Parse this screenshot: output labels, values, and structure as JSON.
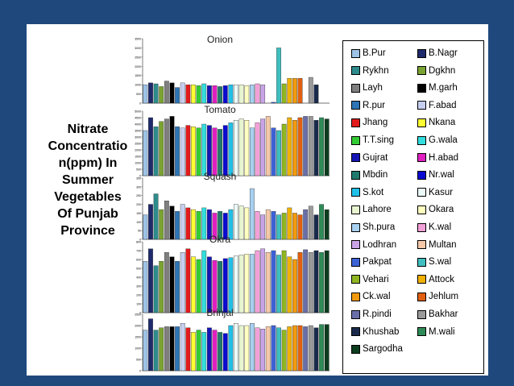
{
  "side_title": "Nitrate\nConcentratio\nn(ppm) In\nSummer\nVegetables\nOf Punjab\nProvince",
  "legend": [
    {
      "name": "B.Pur",
      "color": "#9dc3e6"
    },
    {
      "name": "B.Nagr",
      "color": "#1f2a6b"
    },
    {
      "name": "Rykhn",
      "color": "#2e8b8b"
    },
    {
      "name": "Dgkhn",
      "color": "#7aa332"
    },
    {
      "name": "Layh",
      "color": "#7f7f7f"
    },
    {
      "name": "M.garh",
      "color": "#000000"
    },
    {
      "name": "R.pur",
      "color": "#2e75b6"
    },
    {
      "name": "F.abad",
      "color": "#c6cff0"
    },
    {
      "name": "Jhang",
      "color": "#e31a1c"
    },
    {
      "name": "Nkana",
      "color": "#ffff33"
    },
    {
      "name": "T.T.sing",
      "color": "#33cc33"
    },
    {
      "name": "G.wala",
      "color": "#33dddd"
    },
    {
      "name": "Gujrat",
      "color": "#1515b5"
    },
    {
      "name": "H.abad",
      "color": "#e020c0"
    },
    {
      "name": "Mbdin",
      "color": "#217a6e"
    },
    {
      "name": "Nr.wal",
      "color": "#0a0ad0"
    },
    {
      "name": "S.kot",
      "color": "#20c0e8"
    },
    {
      "name": "Kasur",
      "color": "#ebfaf7"
    },
    {
      "name": "Lahore",
      "color": "#e8f5d0"
    },
    {
      "name": "Okara",
      "color": "#ffffc0"
    },
    {
      "name": "Sh.pura",
      "color": "#a8d0f0"
    },
    {
      "name": "K.wal",
      "color": "#f2a0d8"
    },
    {
      "name": "Lodhran",
      "color": "#c9a3e6"
    },
    {
      "name": "Multan",
      "color": "#f4c8a8"
    },
    {
      "name": "Pakpat",
      "color": "#3d62d6"
    },
    {
      "name": "S.wal",
      "color": "#3fbfbf"
    },
    {
      "name": "Vehari",
      "color": "#8fb620"
    },
    {
      "name": "Attock",
      "color": "#f0b000"
    },
    {
      "name": "Ck.wal",
      "color": "#f29a0f"
    },
    {
      "name": "Jehlum",
      "color": "#e06010"
    },
    {
      "name": "R.pindi",
      "color": "#6a6fa8"
    },
    {
      "name": "Bakhar",
      "color": "#9a9a9a"
    },
    {
      "name": "Khushab",
      "color": "#1a2a4a"
    },
    {
      "name": "M.wali",
      "color": "#2e8b57"
    },
    {
      "name": "Sargodha",
      "color": "#0b3d1e"
    }
  ],
  "chart_data": [
    {
      "type": "bar",
      "title": "Onion",
      "ylim": [
        0,
        3500
      ],
      "yticks": [
        "3500",
        "3000",
        "2500",
        "2000",
        "1500",
        "1000",
        "500",
        "0"
      ],
      "values": [
        1000,
        1100,
        1050,
        900,
        1200,
        1100,
        850,
        1100,
        1000,
        1000,
        950,
        1050,
        950,
        950,
        900,
        950,
        1000,
        1000,
        1000,
        950,
        1000,
        1050,
        1000,
        0,
        50,
        3000,
        1050,
        1350,
        1350,
        1350,
        0,
        1400,
        1000,
        0,
        0
      ]
    },
    {
      "type": "bar",
      "title": "Tomato",
      "ylim": [
        0,
        5000
      ],
      "yticks": [
        "5000",
        "4500",
        "4000",
        "3500",
        "3000",
        "2500",
        "2000",
        "1500",
        "1000",
        "500",
        "0"
      ],
      "values": [
        3500,
        4500,
        3800,
        4200,
        4400,
        4600,
        3800,
        3700,
        3900,
        3800,
        3700,
        4000,
        3900,
        3700,
        3600,
        3900,
        4100,
        4300,
        4400,
        4300,
        3700,
        4100,
        4400,
        4600,
        3700,
        3500,
        4000,
        4500,
        4300,
        4500,
        4600,
        4600,
        4300,
        4500,
        4400
      ]
    },
    {
      "type": "bar",
      "title": "Squash",
      "ylim": [
        0,
        350
      ],
      "yticks": [
        "350",
        "300",
        "250",
        "200",
        "150",
        "100",
        "50",
        "0"
      ],
      "values": [
        140,
        200,
        260,
        170,
        220,
        190,
        160,
        200,
        180,
        170,
        160,
        180,
        170,
        150,
        160,
        150,
        170,
        200,
        190,
        180,
        290,
        160,
        140,
        170,
        160,
        140,
        150,
        180,
        150,
        140,
        170,
        190,
        140,
        200,
        170
      ]
    },
    {
      "type": "bar",
      "title": "Okra",
      "ylim": [
        0,
        800
      ],
      "yticks": [
        "800",
        "700",
        "600",
        "500",
        "400",
        "300",
        "200",
        "100",
        "0"
      ],
      "values": [
        580,
        720,
        530,
        580,
        680,
        630,
        580,
        680,
        720,
        630,
        600,
        700,
        630,
        590,
        580,
        610,
        620,
        640,
        650,
        660,
        660,
        700,
        720,
        680,
        700,
        650,
        700,
        630,
        600,
        680,
        710,
        680,
        700,
        680,
        700
      ]
    },
    {
      "type": "bar",
      "title": "Brinjal",
      "ylim": [
        0,
        2500
      ],
      "yticks": [
        "2500",
        "2000",
        "1500",
        "1000",
        "500",
        "0"
      ],
      "values": [
        1800,
        2300,
        1800,
        1900,
        1950,
        1950,
        1950,
        2100,
        1900,
        1700,
        1800,
        1700,
        1900,
        1800,
        1700,
        1650,
        2000,
        2100,
        2000,
        2000,
        2100,
        1900,
        1850,
        1950,
        2000,
        1900,
        1800,
        1950,
        2000,
        2000,
        1950,
        2000,
        1900,
        2050,
        2050
      ]
    }
  ]
}
